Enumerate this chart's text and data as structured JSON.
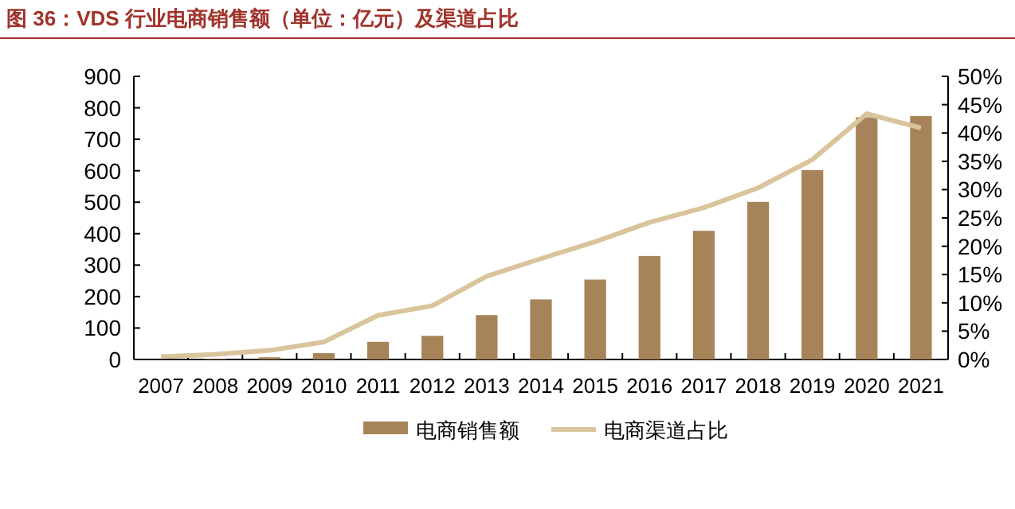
{
  "chart_data": {
    "type": "bar",
    "title": "图 36：VDS 行业电商销售额（单位：亿元）及渠道占比",
    "categories": [
      "2007",
      "2008",
      "2009",
      "2010",
      "2011",
      "2012",
      "2013",
      "2014",
      "2015",
      "2016",
      "2017",
      "2018",
      "2019",
      "2020",
      "2021"
    ],
    "series": [
      {
        "name": "电商销售额",
        "color": "#a68358",
        "values": [
          null,
          2,
          7,
          20,
          56,
          75,
          141,
          191,
          254,
          329,
          409,
          501,
          602,
          770,
          774
        ]
      },
      {
        "name": "电商渠道占比",
        "type": "line",
        "axis": "y2",
        "color": "#d9c49c",
        "values": [
          0.5,
          0.9,
          1.6,
          3.1,
          7.8,
          9.5,
          14.7,
          17.8,
          20.8,
          24.2,
          26.8,
          30.3,
          35.3,
          43.4,
          40.9
        ]
      }
    ],
    "ylim": [
      0,
      900
    ],
    "yticks": [
      0,
      100,
      200,
      300,
      400,
      500,
      600,
      700,
      800,
      900
    ],
    "y2lim": [
      0,
      50
    ],
    "y2ticks": [
      {
        "value": 0,
        "label": "0%"
      },
      {
        "value": 5,
        "label": "5%"
      },
      {
        "value": 10,
        "label": "10%"
      },
      {
        "value": 15,
        "label": "15%"
      },
      {
        "value": 20,
        "label": "20%"
      },
      {
        "value": 25,
        "label": "25%"
      },
      {
        "value": 30,
        "label": "30%"
      },
      {
        "value": 35,
        "label": "35%"
      },
      {
        "value": 40,
        "label": "40%"
      },
      {
        "value": 45,
        "label": "45%"
      },
      {
        "value": 50,
        "label": "50%"
      }
    ],
    "grid": false,
    "legend": "bottom"
  }
}
